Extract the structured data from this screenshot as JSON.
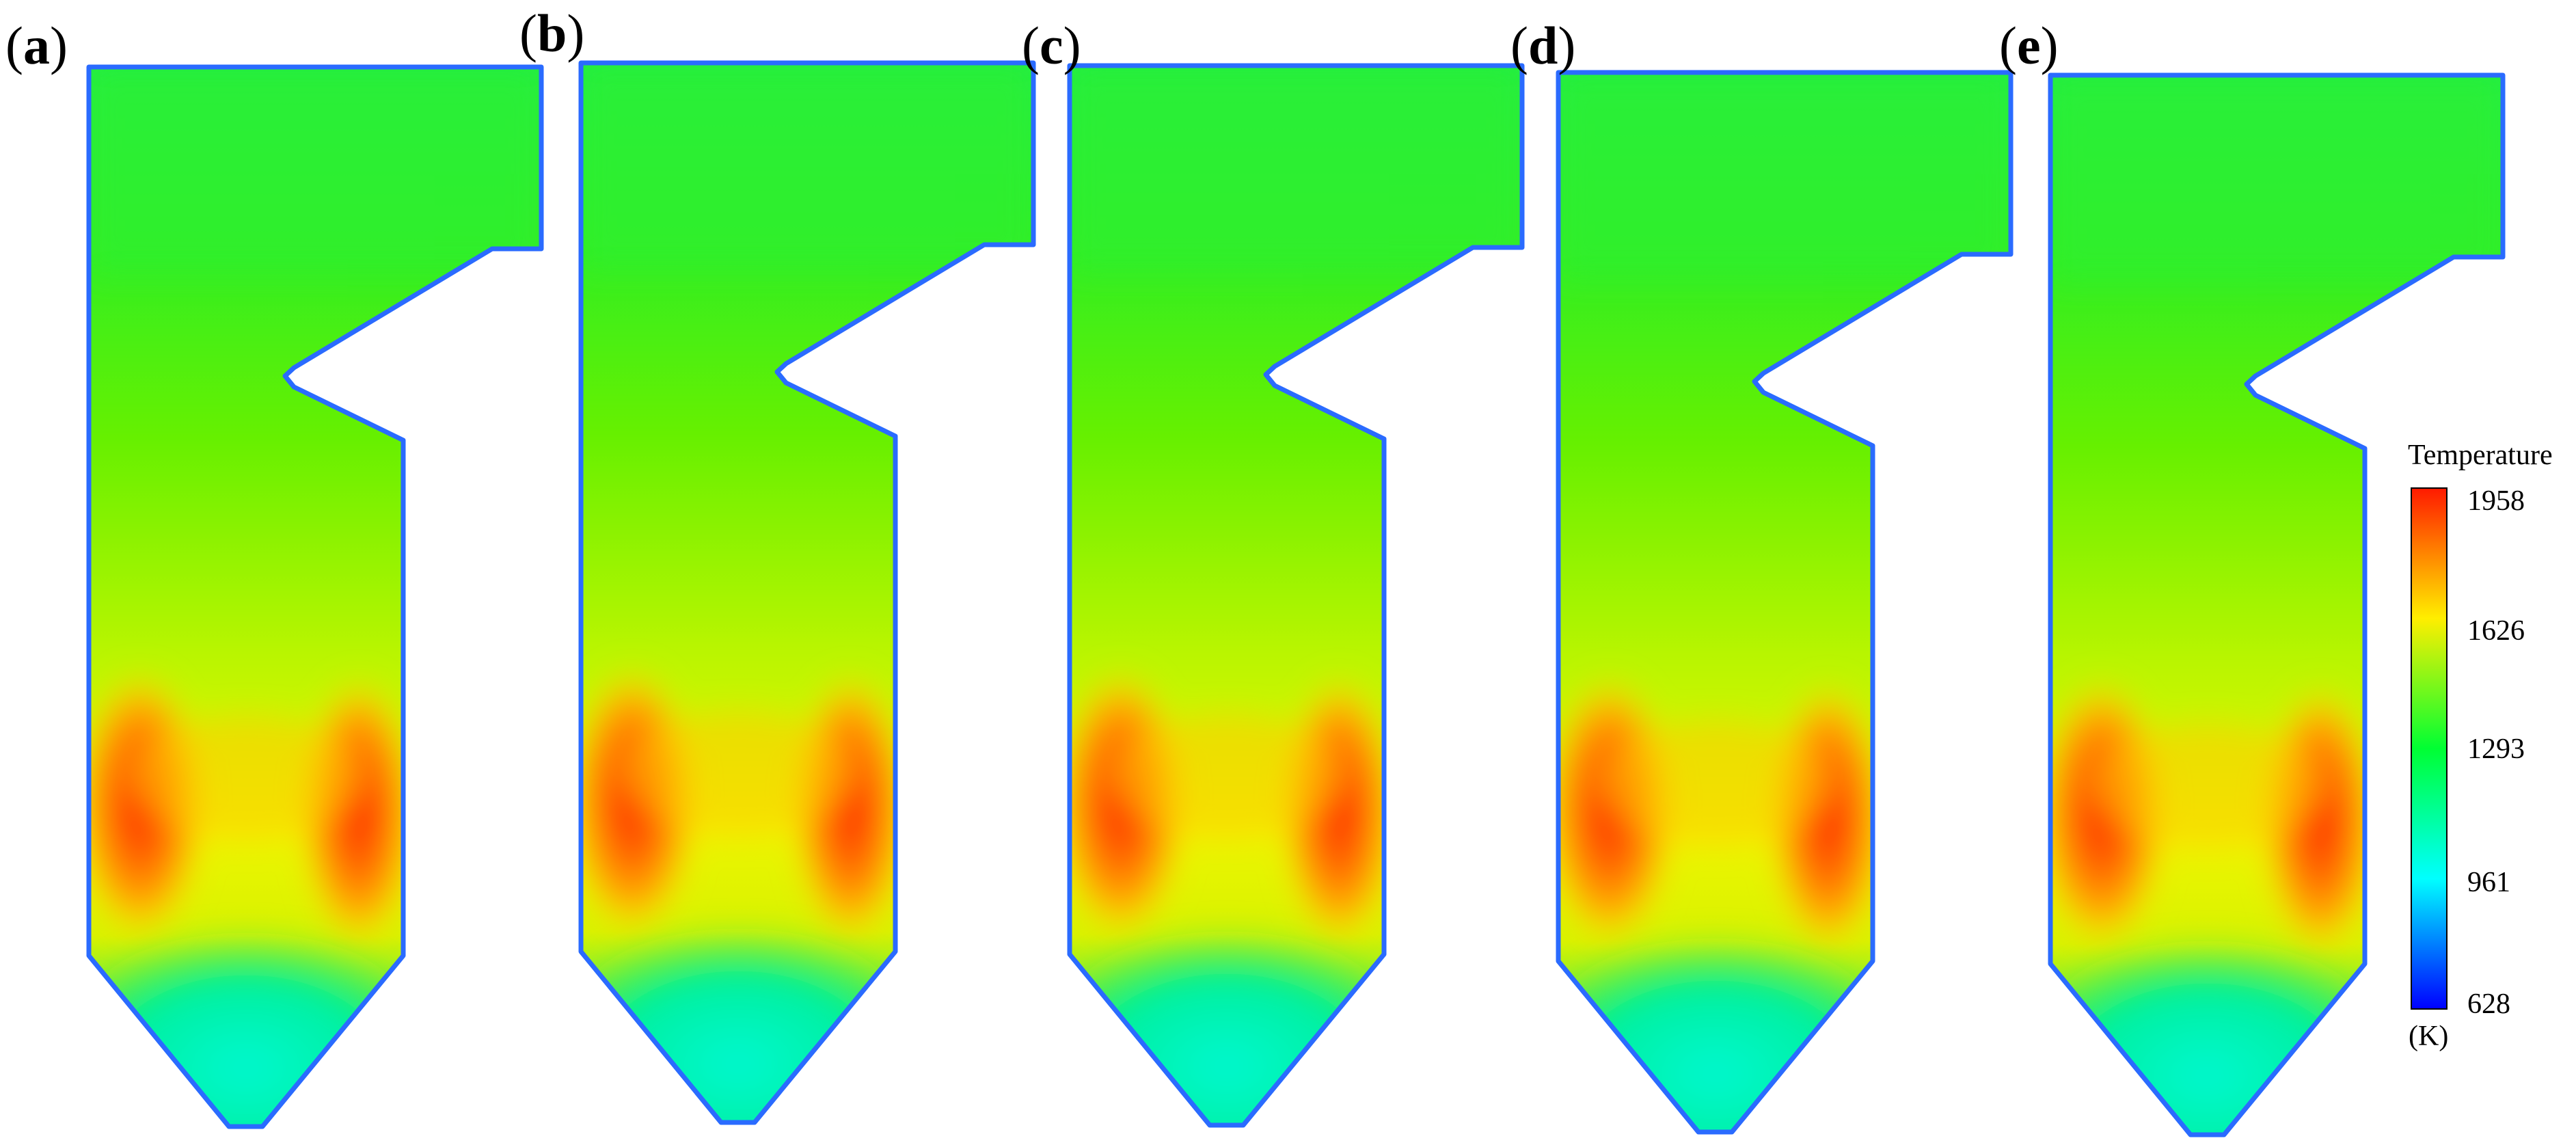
{
  "panels": [
    {
      "label_open": "(",
      "label_letter": "a",
      "label_close": ")"
    },
    {
      "label_open": "(",
      "label_letter": "b",
      "label_close": ")"
    },
    {
      "label_open": "(",
      "label_letter": "c",
      "label_close": ")"
    },
    {
      "label_open": "(",
      "label_letter": "d",
      "label_close": ")"
    },
    {
      "label_open": "(",
      "label_letter": "e",
      "label_close": ")"
    }
  ],
  "legend": {
    "title": "Temperature",
    "unit": "(K)",
    "ticks": [
      "1958",
      "1626",
      "1293",
      "961",
      "628"
    ],
    "colors": [
      "#ff1a00",
      "#ffee00",
      "#00ff33",
      "#00ffff",
      "#0000ff"
    ]
  }
}
